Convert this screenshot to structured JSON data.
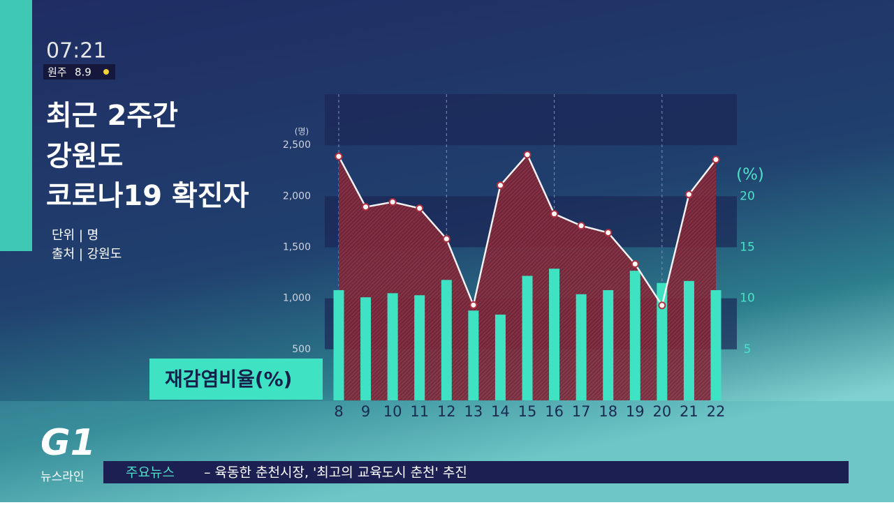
{
  "clock": {
    "time": "07:21",
    "city": "원주",
    "temp": "8.9"
  },
  "info": {
    "unit": "단위 | 명",
    "source": "출처 | 강원도"
  },
  "logo": {
    "mark": "G1",
    "program": "뉴스라인"
  },
  "ticker": {
    "label": "주요뉴스",
    "headline": "– 육동한 춘천시장, '최고의 교육도시 춘천' 추진"
  },
  "chart_data": {
    "type": "bar-line",
    "title": [
      "최근 2주간",
      "강원도",
      "코로나19 확진자"
    ],
    "ylabel": "(명)",
    "y2label": "(%)",
    "categories": [
      "8",
      "9",
      "10",
      "11",
      "12",
      "13",
      "14",
      "15",
      "16",
      "17",
      "18",
      "19",
      "20",
      "21",
      "22"
    ],
    "series": [
      {
        "type": "area",
        "color": "#f2f2f2",
        "fill": "#8b2a3a",
        "values": [
          2390,
          1895,
          1943,
          1882,
          1582,
          934,
          2107,
          2407,
          1827,
          1711,
          1643,
          1336,
          930,
          2018,
          2359
        ]
      },
      {
        "type": "bar",
        "name": "재감염비율(%)",
        "color": "#3fe3c4",
        "axis": "y2",
        "values": [
          10.8,
          10.1,
          10.5,
          10.3,
          11.8,
          8.8,
          8.4,
          12.2,
          12.9,
          10.4,
          10.8,
          12.7,
          11.5,
          11.7,
          10.8
        ]
      }
    ],
    "ylim": [
      0,
      3000
    ],
    "yticks": [
      500,
      {
        "value": 1000,
        "label": "1,000"
      },
      {
        "value": 1500,
        "label": "1,500"
      },
      {
        "value": 2000,
        "label": "2,000"
      },
      {
        "value": 2500,
        "label": "2,500"
      }
    ],
    "y2lim": [
      0,
      30
    ],
    "y2ticks": [
      5,
      10,
      15,
      20
    ],
    "grid": true
  }
}
